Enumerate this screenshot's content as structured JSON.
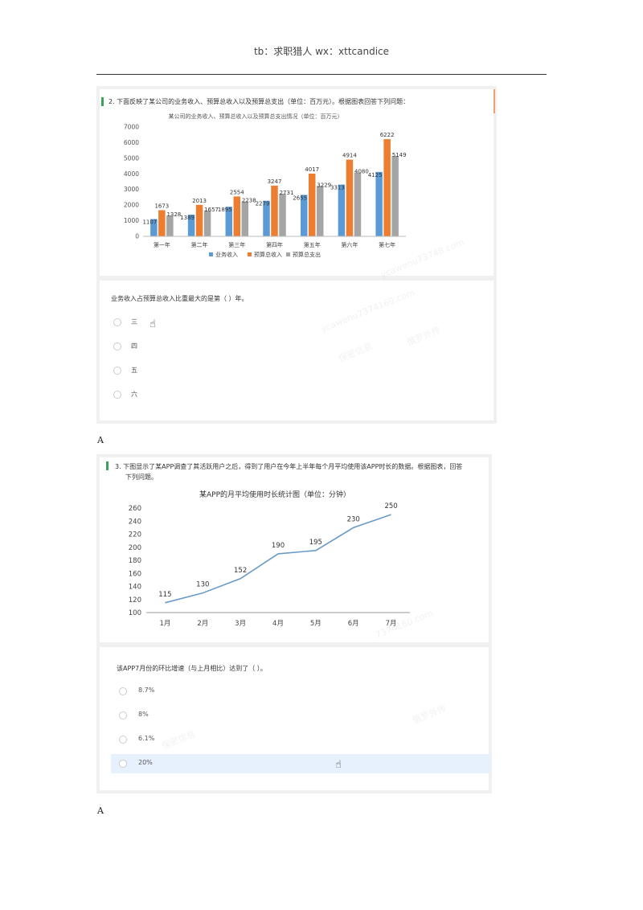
{
  "header": {
    "text": "tb：求职猎人  wx：xttcandice"
  },
  "q1": {
    "title": "2.  下面反映了某公司的业务收入、预算总收入以及预算总支出（单位：百万元）。根据图表回答下列问题：",
    "question": "业务收入占预算总收入比重最大的是第（   ）年。",
    "options": [
      "三",
      "四",
      "五",
      "六"
    ],
    "answer": "A"
  },
  "q2": {
    "title_line1": "3.  下图显示了某APP调查了其活跃用户之后，得到了用户在今年上半年每个月平均使用该APP时长的数据。根据图表，回答",
    "title_line2": "下列问题。",
    "question": "该APP7月份的环比增速（与上月相比）达到了（   ）。",
    "options": [
      "8.7%",
      "8%",
      "6.1%",
      "20%"
    ],
    "answer": "A"
  },
  "watermarks": [
    "ycawenu73748.com",
    "ycawenu7374160.com",
    "俄罗外传",
    "保密信息",
    "7374160.com",
    "俄罗外传",
    "保密信息"
  ],
  "chart_data": [
    {
      "type": "bar",
      "title": "某公司的业务收入、预算总收入以及预算总支出情况（单位：百万元）",
      "categories": [
        "第一年",
        "第二年",
        "第三年",
        "第四年",
        "第五年",
        "第六年",
        "第七年"
      ],
      "series": [
        {
          "name": "业务收入",
          "values": [
            1107,
            1389,
            1895,
            2279,
            2655,
            3313,
            4125
          ],
          "color": "#5b9bd5"
        },
        {
          "name": "预算总收入",
          "values": [
            1673,
            2013,
            2554,
            3247,
            4017,
            4914,
            6222
          ],
          "color": "#ed7d31"
        },
        {
          "name": "预算总支出",
          "values": [
            1328,
            1657,
            2238,
            2731,
            3229,
            4080,
            5149
          ],
          "color": "#a5a5a5"
        }
      ],
      "ylim": [
        0,
        7000
      ],
      "yticks": [
        0,
        1000,
        2000,
        3000,
        4000,
        5000,
        6000,
        7000
      ],
      "legend": "bottom",
      "grid": false
    },
    {
      "type": "line",
      "title": "某APP的月平均使用时长统计图（单位：分钟）",
      "categories": [
        "1月",
        "2月",
        "3月",
        "4月",
        "5月",
        "6月",
        "7月"
      ],
      "values": [
        115,
        130,
        152,
        190,
        195,
        230,
        250
      ],
      "color": "#6a9bc8",
      "ylim": [
        100,
        260
      ],
      "yticks": [
        100,
        120,
        140,
        160,
        180,
        200,
        220,
        240,
        260
      ],
      "grid": false
    }
  ]
}
